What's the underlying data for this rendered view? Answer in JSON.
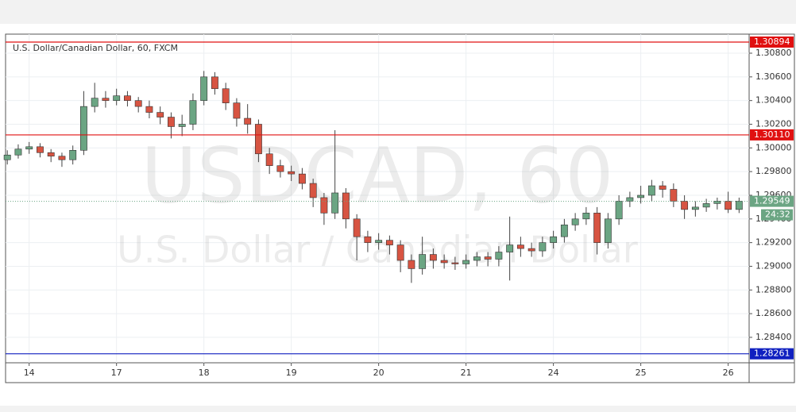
{
  "chart_data": {
    "type": "candlestick",
    "title": "U.S. Dollar/Canadian Dollar, 60, FXCM",
    "watermark": [
      "USDCAD, 60",
      "U.S. Dollar / Canadian Dollar"
    ],
    "up_color": "#6ba583",
    "down_color": "#d75442",
    "grid": true,
    "xlim": [
      -0.27,
      8.24
    ],
    "xticks": [
      {
        "value": 0,
        "label": "14"
      },
      {
        "value": 1,
        "label": "17"
      },
      {
        "value": 2,
        "label": "18"
      },
      {
        "value": 3,
        "label": "19"
      },
      {
        "value": 4,
        "label": "20"
      },
      {
        "value": 5,
        "label": "21"
      },
      {
        "value": 6,
        "label": "24"
      },
      {
        "value": 7,
        "label": "25"
      },
      {
        "value": 8,
        "label": "26"
      }
    ],
    "ylim": [
      1.28185,
      1.30961
    ],
    "yticks": [
      {
        "value": 1.308,
        "label": "1.30800"
      },
      {
        "value": 1.306,
        "label": "1.30600"
      },
      {
        "value": 1.304,
        "label": "1.30400"
      },
      {
        "value": 1.302,
        "label": "1.30200"
      },
      {
        "value": 1.3,
        "label": "1.30000"
      },
      {
        "value": 1.298,
        "label": "1.29800"
      },
      {
        "value": 1.296,
        "label": "1.29600"
      },
      {
        "value": 1.294,
        "label": "1.29400"
      },
      {
        "value": 1.292,
        "label": "1.29200"
      },
      {
        "value": 1.29,
        "label": "1.29000"
      },
      {
        "value": 1.288,
        "label": "1.28800"
      },
      {
        "value": 1.286,
        "label": "1.28600"
      },
      {
        "value": 1.284,
        "label": "1.28400"
      }
    ],
    "levels": [
      {
        "value": 1.30894,
        "label": "1.30894",
        "color": "#e01010"
      },
      {
        "value": 1.3011,
        "label": "1.30110",
        "color": "#e01010"
      },
      {
        "value": 1.28261,
        "label": "1.28261",
        "color": "#1020c0"
      }
    ],
    "last_price": {
      "value": 1.29549,
      "label": "1.29549",
      "countdown": "24:32",
      "color": "#6ba583"
    },
    "x": [
      -0.25,
      -0.125,
      0,
      0.125,
      0.25,
      0.375,
      0.5,
      0.625,
      0.75,
      0.875,
      1,
      1.125,
      1.25,
      1.375,
      1.5,
      1.625,
      1.75,
      1.875,
      2,
      2.125,
      2.25,
      2.375,
      2.5,
      2.625,
      2.75,
      2.875,
      3,
      3.125,
      3.25,
      3.375,
      3.5,
      3.625,
      3.75,
      3.875,
      4,
      4.125,
      4.25,
      4.375,
      4.5,
      4.625,
      4.75,
      4.875,
      5,
      5.125,
      5.25,
      5.375,
      5.5,
      5.625,
      5.75,
      5.875,
      6,
      6.125,
      6.25,
      6.375,
      6.5,
      6.625,
      6.75,
      6.875,
      7,
      7.125,
      7.25,
      7.375,
      7.5,
      7.625,
      7.75,
      7.875,
      8,
      8.125
    ],
    "open": [
      1.299,
      1.2994,
      1.2999,
      1.3001,
      1.2996,
      1.2993,
      1.299,
      1.2998,
      1.3035,
      1.3042,
      1.304,
      1.3044,
      1.304,
      1.3035,
      1.303,
      1.3026,
      1.3018,
      1.302,
      1.304,
      1.306,
      1.305,
      1.3038,
      1.3025,
      1.302,
      1.2995,
      1.2985,
      1.298,
      1.2978,
      1.297,
      1.2958,
      1.2945,
      1.2962,
      1.294,
      1.2925,
      1.292,
      1.2922,
      1.2918,
      1.2905,
      1.2898,
      1.291,
      1.2905,
      1.2903,
      1.2902,
      1.2905,
      1.2908,
      1.2906,
      1.2912,
      1.2918,
      1.2915,
      1.2913,
      1.292,
      1.2925,
      1.2935,
      1.294,
      1.2945,
      1.292,
      1.294,
      1.2955,
      1.2958,
      1.296,
      1.2968,
      1.2965,
      1.2955,
      1.2948,
      1.295,
      1.2953,
      1.2955,
      1.2948
    ],
    "high": [
      1.2998,
      1.3003,
      1.3005,
      1.3004,
      1.2999,
      1.2996,
      1.3002,
      1.3048,
      1.3055,
      1.3048,
      1.305,
      1.3048,
      1.3043,
      1.304,
      1.3035,
      1.303,
      1.3028,
      1.3046,
      1.3065,
      1.3064,
      1.3055,
      1.3042,
      1.3037,
      1.3024,
      1.3,
      1.299,
      1.2985,
      1.2983,
      1.2974,
      1.2962,
      1.3015,
      1.2966,
      1.2944,
      1.293,
      1.2928,
      1.2926,
      1.2922,
      1.291,
      1.2925,
      1.2915,
      1.291,
      1.2908,
      1.291,
      1.2912,
      1.2912,
      1.2917,
      1.2942,
      1.2925,
      1.292,
      1.2925,
      1.293,
      1.294,
      1.2945,
      1.295,
      1.295,
      1.2945,
      1.296,
      1.2963,
      1.2968,
      1.2973,
      1.2972,
      1.297,
      1.296,
      1.2955,
      1.2957,
      1.2958,
      1.2963,
      1.2958
    ],
    "low": [
      1.2986,
      1.2991,
      1.2995,
      1.2992,
      1.2988,
      1.2984,
      1.2986,
      1.2994,
      1.303,
      1.3034,
      1.3036,
      1.3035,
      1.303,
      1.3025,
      1.302,
      1.3008,
      1.301,
      1.3015,
      1.3036,
      1.3045,
      1.3032,
      1.3018,
      1.3012,
      1.2988,
      1.2978,
      1.2975,
      1.2972,
      1.2965,
      1.295,
      1.2935,
      1.294,
      1.2932,
      1.2905,
      1.2912,
      1.2914,
      1.291,
      1.2895,
      1.2886,
      1.2893,
      1.2898,
      1.2898,
      1.2897,
      1.2898,
      1.29,
      1.29,
      1.29,
      1.2888,
      1.2908,
      1.2908,
      1.2908,
      1.2915,
      1.292,
      1.293,
      1.2935,
      1.291,
      1.2915,
      1.2935,
      1.295,
      1.2953,
      1.2955,
      1.2958,
      1.295,
      1.294,
      1.2942,
      1.2946,
      1.2948,
      1.2945,
      1.2945
    ],
    "close": [
      1.2994,
      1.2999,
      1.3001,
      1.2996,
      1.2993,
      1.299,
      1.2998,
      1.3035,
      1.3042,
      1.304,
      1.3044,
      1.304,
      1.3035,
      1.303,
      1.3026,
      1.3018,
      1.302,
      1.304,
      1.306,
      1.305,
      1.3038,
      1.3025,
      1.302,
      1.2995,
      1.2985,
      1.298,
      1.2978,
      1.297,
      1.2958,
      1.2945,
      1.2962,
      1.294,
      1.2925,
      1.292,
      1.2922,
      1.2918,
      1.2905,
      1.2898,
      1.291,
      1.2905,
      1.2903,
      1.2902,
      1.2905,
      1.2908,
      1.2906,
      1.2912,
      1.2918,
      1.2915,
      1.2913,
      1.292,
      1.2925,
      1.2935,
      1.294,
      1.2945,
      1.292,
      1.294,
      1.2955,
      1.2958,
      1.296,
      1.2968,
      1.2965,
      1.2955,
      1.2948,
      1.295,
      1.2953,
      1.2955,
      1.2948,
      1.2955
    ]
  }
}
